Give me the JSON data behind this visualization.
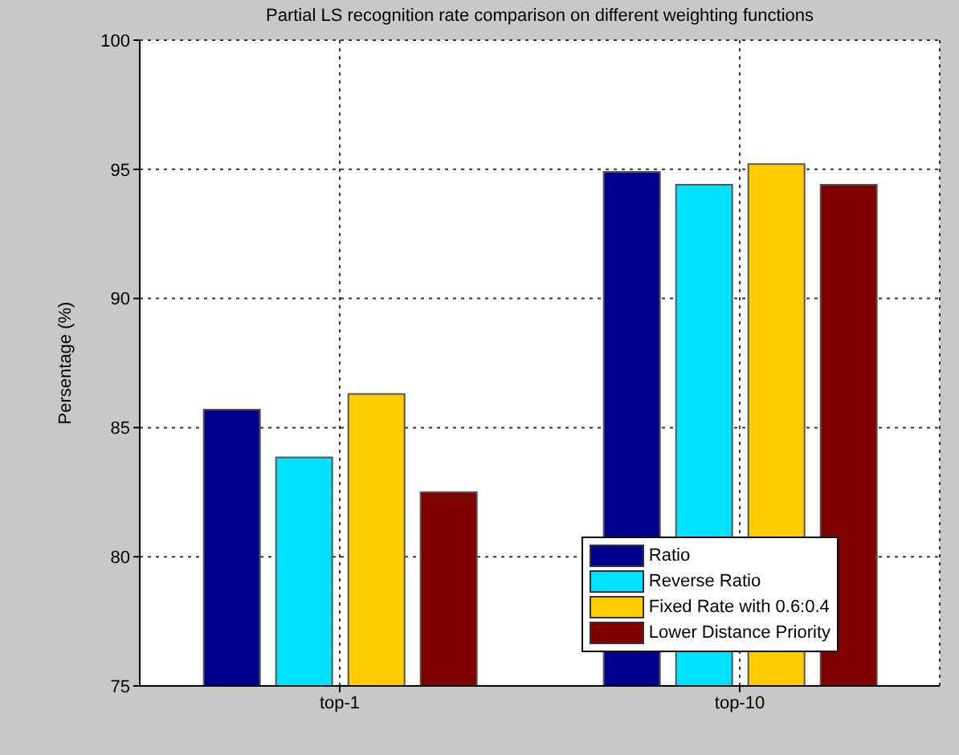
{
  "chart_data": {
    "type": "bar",
    "title": "Partial LS recognition rate comparison on different weighting functions",
    "ylabel": "Persentage (%)",
    "categories": [
      "top-1",
      "top-10"
    ],
    "series": [
      {
        "name": "Ratio",
        "color": "#00008f",
        "values": [
          85.7,
          94.9
        ]
      },
      {
        "name": "Reverse Ratio",
        "color": "#00e1ff",
        "values": [
          83.85,
          94.4
        ]
      },
      {
        "name": "Fixed Rate with 0.6:0.4",
        "color": "#ffcc00",
        "values": [
          86.3,
          95.2
        ]
      },
      {
        "name": "Lower Distance Priority",
        "color": "#800000",
        "values": [
          82.5,
          94.4
        ]
      }
    ],
    "ylim": [
      75,
      100
    ],
    "yticks": [
      75,
      80,
      85,
      90,
      95,
      100
    ],
    "grid": true,
    "legend": "bottom right"
  }
}
